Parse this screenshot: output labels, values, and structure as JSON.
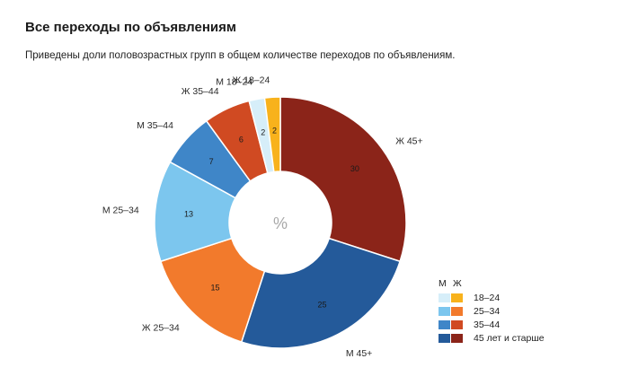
{
  "title": "Все переходы по объявлениям",
  "subtitle": "Приведены доли половозрастных групп в общем количестве переходов по объявлениям.",
  "chart_data": {
    "type": "pie",
    "variant": "donut",
    "center_label": "%",
    "slices": [
      {
        "label": "Ж 45+",
        "value": 30,
        "color": "#8b2419"
      },
      {
        "label": "М 45+",
        "value": 25,
        "color": "#245a9a"
      },
      {
        "label": "Ж 25–34",
        "value": 15,
        "color": "#f27a2c"
      },
      {
        "label": "М 25–34",
        "value": 13,
        "color": "#7cc6ee"
      },
      {
        "label": "М 35–44",
        "value": 7,
        "color": "#3f86c8"
      },
      {
        "label": "Ж 35–44",
        "value": 6,
        "color": "#d04a22"
      },
      {
        "label": "М 18–24",
        "value": 2,
        "color": "#d6eef9"
      },
      {
        "label": "Ж 18–24",
        "value": 2,
        "color": "#f8b21c"
      }
    ],
    "legend": {
      "placement": "bottom-right",
      "header_m": "М",
      "header_f": "Ж",
      "rows": [
        {
          "label": "18–24",
          "m_color": "#d6eef9",
          "f_color": "#f8b21c"
        },
        {
          "label": "25–34",
          "m_color": "#7cc6ee",
          "f_color": "#f27a2c"
        },
        {
          "label": "35–44",
          "m_color": "#3f86c8",
          "f_color": "#d04a22"
        },
        {
          "label": "45 лет и старше",
          "m_color": "#245a9a",
          "f_color": "#8b2419"
        }
      ]
    }
  }
}
